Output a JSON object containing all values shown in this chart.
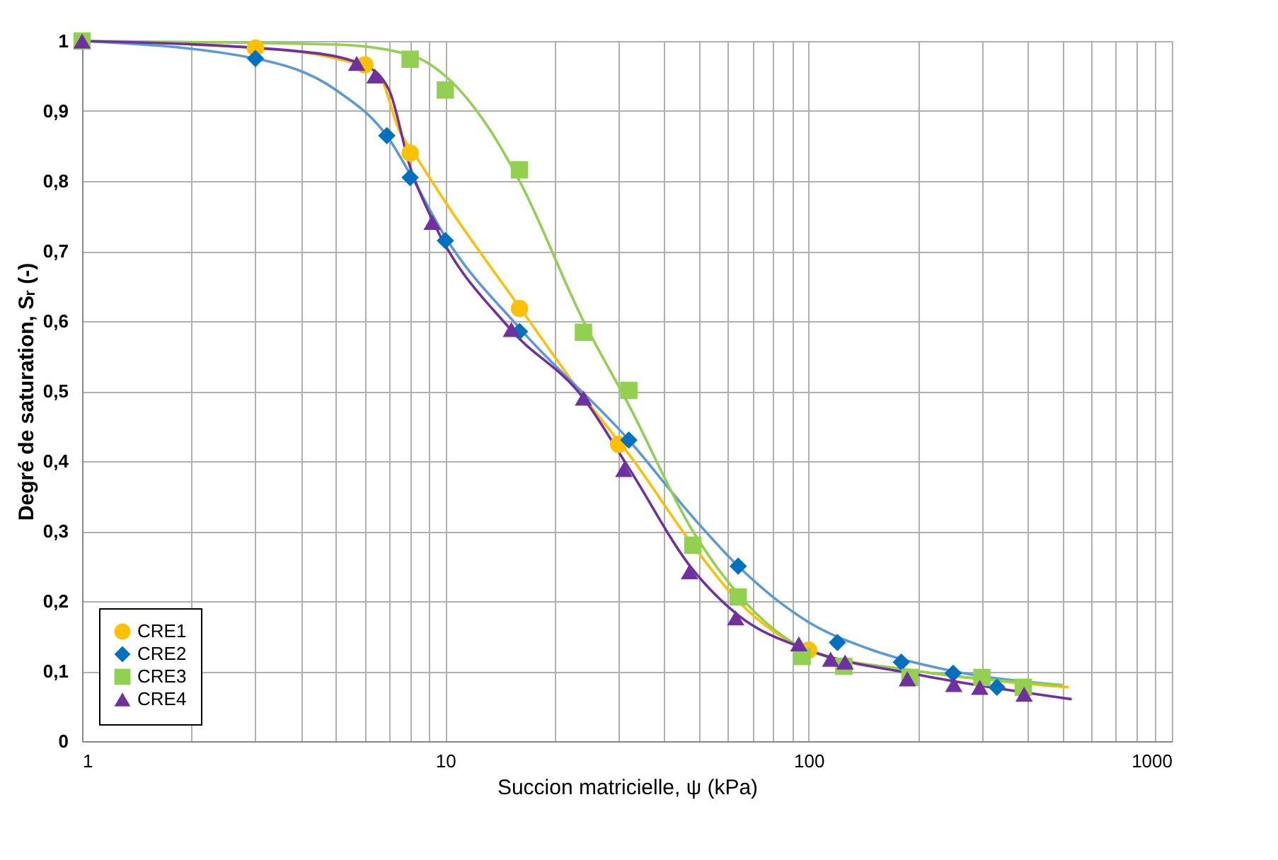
{
  "chart_data": {
    "type": "scatter",
    "xlabel": "Succion matricielle, ψ (kPa)",
    "ylabel": "Degré de saturation, Sᵣ (-)",
    "log": "x",
    "grid": true,
    "legend": "bottom left",
    "xlim": [
      1,
      1000
    ],
    "ylim": [
      0,
      1
    ],
    "xticks": [
      1,
      {
        "value": 2,
        "label": null
      },
      {
        "value": 3,
        "label": null
      },
      {
        "value": 4,
        "label": null
      },
      {
        "value": 5,
        "label": null
      },
      {
        "value": 6,
        "label": null
      },
      {
        "value": 7,
        "label": null
      },
      {
        "value": 8,
        "label": null
      },
      {
        "value": 9,
        "label": null
      },
      10,
      {
        "value": 20,
        "label": null
      },
      {
        "value": 30,
        "label": null
      },
      {
        "value": 40,
        "label": null
      },
      {
        "value": 50,
        "label": null
      },
      {
        "value": 60,
        "label": null
      },
      {
        "value": 70,
        "label": null
      },
      {
        "value": 80,
        "label": null
      },
      {
        "value": 90,
        "label": null
      },
      100,
      {
        "value": 200,
        "label": null
      },
      {
        "value": 300,
        "label": null
      },
      {
        "value": 400,
        "label": null
      },
      {
        "value": 500,
        "label": null
      },
      {
        "value": 600,
        "label": null
      },
      {
        "value": 700,
        "label": null
      },
      {
        "value": 800,
        "label": null
      },
      {
        "value": 900,
        "label": null
      },
      1000
    ],
    "yticks": [
      0,
      {
        "value": 0.1,
        "label": "0,1"
      },
      {
        "value": 0.2,
        "label": "0,2"
      },
      {
        "value": 0.3,
        "label": "0,3"
      },
      {
        "value": 0.4,
        "label": "0,4"
      },
      {
        "value": 0.5,
        "label": "0,5"
      },
      {
        "value": 0.6,
        "label": "0,6"
      },
      {
        "value": 0.7,
        "label": "0,7"
      },
      {
        "value": 0.8,
        "label": "0,8"
      },
      {
        "value": 0.9,
        "label": "0,9"
      },
      1
    ],
    "series": [
      {
        "type": "line",
        "marker": "none",
        "color": "#ffc000",
        "x": [
          1,
          3,
          5,
          6.5,
          7.5,
          8.3,
          10,
          16,
          25,
          32,
          48,
          64,
          100,
          200,
          520
        ],
        "values": [
          1,
          0.99,
          0.975,
          0.955,
          0.87,
          0.835,
          0.77,
          0.62,
          0.48,
          0.41,
          0.28,
          0.2,
          0.13,
          0.1,
          0.077
        ]
      },
      {
        "type": "line",
        "marker": "none",
        "color": "#5b9bd5",
        "x": [
          1,
          3,
          5,
          7,
          8,
          10,
          16,
          32,
          48,
          64,
          100,
          150,
          250,
          500
        ],
        "values": [
          1,
          0.975,
          0.93,
          0.86,
          0.81,
          0.72,
          0.59,
          0.43,
          0.32,
          0.25,
          0.17,
          0.13,
          0.1,
          0.08
        ]
      },
      {
        "type": "line",
        "marker": "none",
        "color": "#92d050",
        "x": [
          1,
          5,
          8,
          10,
          13,
          16,
          24,
          32,
          48,
          64,
          100,
          200,
          500
        ],
        "values": [
          1,
          0.995,
          0.98,
          0.95,
          0.88,
          0.8,
          0.6,
          0.48,
          0.3,
          0.21,
          0.13,
          0.1,
          0.08
        ]
      },
      {
        "type": "line",
        "marker": "none",
        "color": "#7030a0",
        "x": [
          1,
          4,
          6,
          7,
          8,
          9.2,
          15,
          24,
          32,
          48,
          64,
          100,
          200,
          530
        ],
        "values": [
          1,
          0.985,
          0.965,
          0.93,
          0.82,
          0.745,
          0.59,
          0.49,
          0.39,
          0.245,
          0.18,
          0.13,
          0.095,
          0.06
        ]
      },
      {
        "name": "CRE1",
        "marker": "circle",
        "color": "#ffc000",
        "x": [
          3,
          6,
          8,
          16,
          30,
          100
        ],
        "values": [
          0.99,
          0.966,
          0.84,
          0.618,
          0.424,
          0.13
        ]
      },
      {
        "name": "CRE2",
        "marker": "diamond",
        "color": "#0070c0",
        "x": [
          3,
          6.9,
          8,
          10,
          16,
          32,
          64,
          120,
          180,
          250,
          330
        ],
        "values": [
          0.975,
          0.865,
          0.805,
          0.715,
          0.585,
          0.43,
          0.25,
          0.141,
          0.113,
          0.097,
          0.077
        ]
      },
      {
        "name": "CRE3",
        "marker": "square",
        "color": "#92d050",
        "x": [
          1,
          8,
          10,
          16,
          24,
          32,
          48,
          64,
          96,
          125,
          190,
          300,
          390
        ],
        "values": [
          1,
          0.974,
          0.93,
          0.816,
          0.584,
          0.501,
          0.28,
          0.206,
          0.121,
          0.107,
          0.091,
          0.091,
          0.077
        ]
      },
      {
        "name": "CRE4",
        "marker": "triangle",
        "color": "#7030a0",
        "x": [
          1,
          5.7,
          6.4,
          9.2,
          15.2,
          24,
          31,
          47,
          63,
          94,
          115,
          126,
          187,
          251,
          296,
          392
        ],
        "values": [
          1,
          0.968,
          0.95,
          0.741,
          0.588,
          0.49,
          0.388,
          0.242,
          0.176,
          0.139,
          0.117,
          0.113,
          0.089,
          0.081,
          0.077,
          0.067
        ]
      }
    ]
  }
}
